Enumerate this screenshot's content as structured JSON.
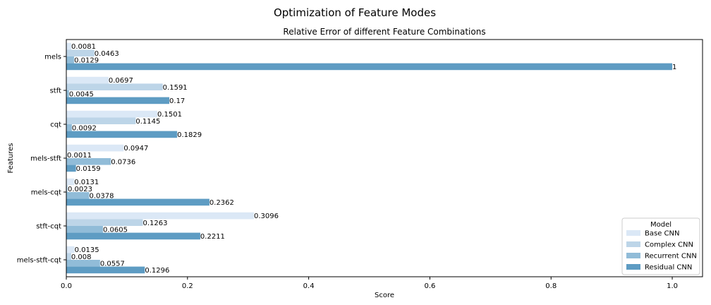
{
  "figure": {
    "suptitle": "Optimization of Feature Modes"
  },
  "chart_data": {
    "type": "bar",
    "orientation": "horizontal",
    "title": "Relative Error of different Feature Combinations",
    "xlabel": "Score",
    "ylabel": "Features",
    "xlim": [
      0,
      1.05
    ],
    "xticks": [
      0,
      0.2,
      0.4,
      0.6,
      0.8,
      1.0
    ],
    "xtick_labels": [
      "0.0",
      "0.2",
      "0.4",
      "0.6",
      "0.8",
      "1.0"
    ],
    "grid": false,
    "categories": [
      "mels",
      "stft",
      "cqt",
      "mels-stft",
      "mels-cqt",
      "stft-cqt",
      "mels-stft-cqt"
    ],
    "series": [
      {
        "name": "Base CNN",
        "color": "#dbe8f6",
        "values": [
          0.0081,
          0.0697,
          0.1501,
          0.0947,
          0.0131,
          0.3096,
          0.0135
        ],
        "labels": [
          "0.0081",
          "0.0697",
          "0.1501",
          "0.0947",
          "0.0131",
          "0.3096",
          "0.0135"
        ]
      },
      {
        "name": "Complex CNN",
        "color": "#bdd5e8",
        "values": [
          0.0463,
          0.1591,
          0.1145,
          0.0011,
          0.0023,
          0.1263,
          0.008
        ],
        "labels": [
          "0.0463",
          "0.1591",
          "0.1145",
          "0.0011",
          "0.0023",
          "0.1263",
          "0.008"
        ]
      },
      {
        "name": "Recurrent CNN",
        "color": "#91bcd8",
        "values": [
          0.0129,
          0.0045,
          0.0092,
          0.0736,
          0.0378,
          0.0605,
          0.0557
        ],
        "labels": [
          "0.0129",
          "0.0045",
          "0.0092",
          "0.0736",
          "0.0378",
          "0.0605",
          "0.0557"
        ]
      },
      {
        "name": "Residual CNN",
        "color": "#5e9cc3",
        "values": [
          1,
          0.17,
          0.1829,
          0.0159,
          0.2362,
          0.2211,
          0.1296
        ],
        "labels": [
          "1",
          "0.17",
          "0.1829",
          "0.0159",
          "0.2362",
          "0.2211",
          "0.1296"
        ]
      }
    ],
    "legend": {
      "title": "Model",
      "placement": "lower-right"
    }
  }
}
